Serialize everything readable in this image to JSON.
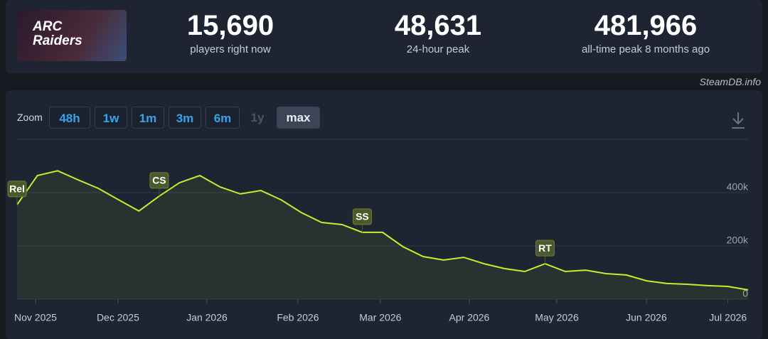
{
  "header": {
    "logo_text": "ARC Raiders",
    "stats": [
      {
        "value": "15,690",
        "label": "players right now"
      },
      {
        "value": "48,631",
        "label": "24-hour peak"
      },
      {
        "value": "481,966",
        "label": "all-time peak 8 months ago"
      }
    ]
  },
  "source": "SteamDB.info",
  "zoom": {
    "label": "Zoom",
    "buttons": [
      "48h",
      "1w",
      "1m",
      "3m",
      "6m",
      "1y",
      "max"
    ]
  },
  "chart_data": {
    "type": "area",
    "color": "#c2ef2c",
    "categories": [
      null,
      null,
      null,
      null,
      null,
      null,
      null,
      null,
      null,
      null,
      null,
      null,
      null,
      null,
      null,
      null,
      null,
      null,
      null,
      null,
      null,
      null,
      null,
      null,
      null,
      null,
      null,
      null,
      null,
      null,
      null,
      null,
      null,
      null,
      null,
      null,
      null
    ],
    "values": [
      355000,
      464000,
      482000,
      448000,
      416000,
      373000,
      331000,
      387000,
      437000,
      464000,
      421000,
      395000,
      408000,
      373000,
      325000,
      288000,
      280000,
      251000,
      251000,
      197000,
      160000,
      147000,
      157000,
      133000,
      115000,
      104000,
      133000,
      104000,
      109000,
      96000,
      91000,
      69000,
      59000,
      56000,
      51000,
      48000,
      35000
    ],
    "annotations": [
      "Rel",
      "CS",
      "SS",
      "RT"
    ],
    "ylim": [
      0,
      600000
    ],
    "yticks": [
      0,
      {
        "value": 200000,
        "label": "200k"
      },
      {
        "value": 400000,
        "label": "400k"
      }
    ],
    "xticks": [
      {
        "value": 0.91,
        "label": "Nov 2025"
      },
      {
        "value": 4.97,
        "label": "Dec 2025"
      },
      {
        "value": 9.35,
        "label": "Jan 2026"
      },
      {
        "value": 13.83,
        "label": "Feb 2026"
      },
      {
        "value": 17.89,
        "label": "Mar 2026"
      },
      {
        "value": 22.27,
        "label": "Apr 2026"
      },
      {
        "value": 26.58,
        "label": "May 2026"
      },
      {
        "value": 30.99,
        "label": "Jun 2026"
      },
      {
        "value": 35.01,
        "label": "Jul 2026"
      }
    ],
    "grid": true
  }
}
